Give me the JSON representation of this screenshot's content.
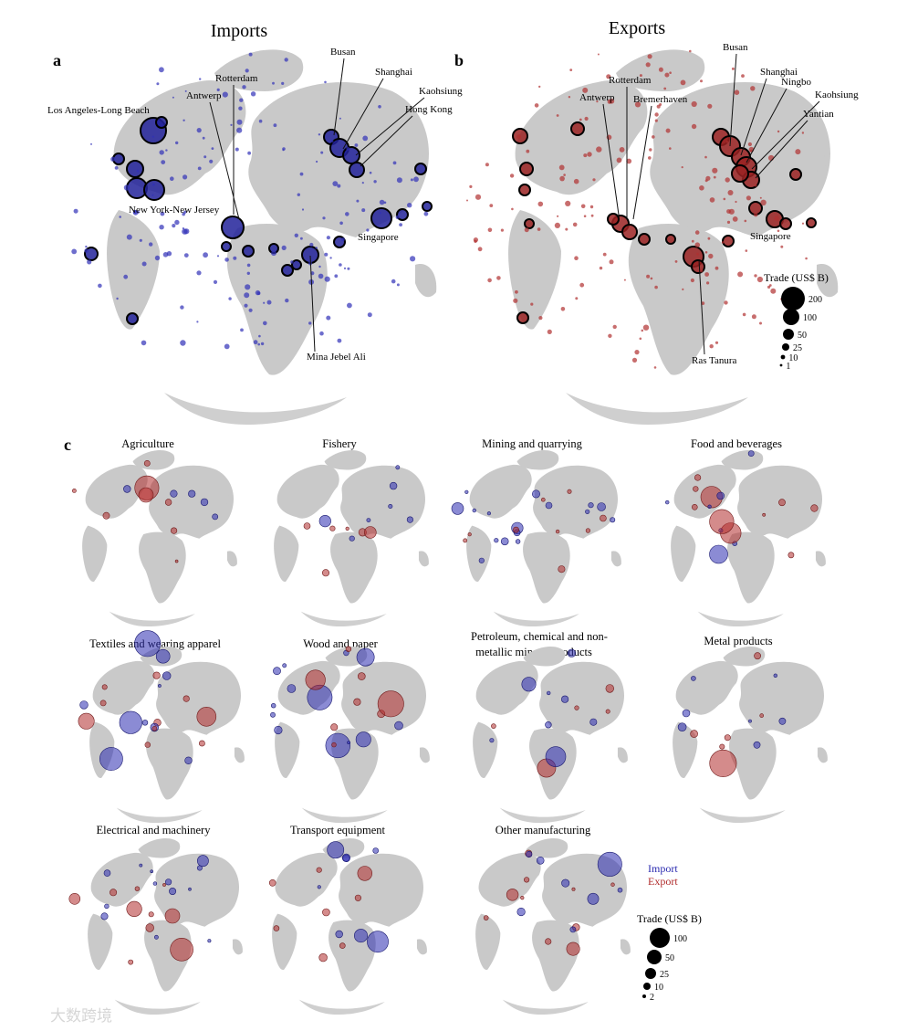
{
  "panels": {
    "a": {
      "letter": "a",
      "title": "Imports",
      "color": "#1a1a8c",
      "labels": [
        "Los Angeles-Long Beach",
        "Antwerp",
        "Rotterdam",
        "Busan",
        "Shanghai",
        "Kaohsiung",
        "Hong Kong",
        "New York-New Jersey",
        "Singapore",
        "Mina Jebel Ali"
      ]
    },
    "b": {
      "letter": "b",
      "title": "Exports",
      "color": "#8c1a1a",
      "labels": [
        "Busan",
        "Shanghai",
        "Ningbo",
        "Kaohsiung",
        "Yantian",
        "Rotterdam",
        "Antwerp",
        "Bremerhaven",
        "Singapore",
        "Ras Tanura"
      ]
    },
    "c": {
      "letter": "c",
      "sectors": [
        "Agriculture",
        "Fishery",
        "Mining and quarrying",
        "Food and beverages",
        "Textiles and wearing apparel",
        "Wood and paper",
        "Petroleum, chemical and non-metallic mineral products",
        "Metal products",
        "Electrical and machinery",
        "Transport equipment",
        "Other manufacturing"
      ],
      "sector_title_lines": {
        "s6_line1": "Petroleum, chemical and non-",
        "s6_line2": "metallic mineral products"
      }
    }
  },
  "legend_b": {
    "title": "Trade (US$ B)",
    "values": [
      200,
      100,
      50,
      25,
      10,
      1
    ]
  },
  "legend_c": {
    "import_label": "Import",
    "export_label": "Export",
    "import_color": "#2b2bb0",
    "export_color": "#b02b2b",
    "title": "Trade (US$ B)",
    "values": [
      100,
      50,
      25,
      10,
      2
    ]
  },
  "watermark": "大数跨境"
}
